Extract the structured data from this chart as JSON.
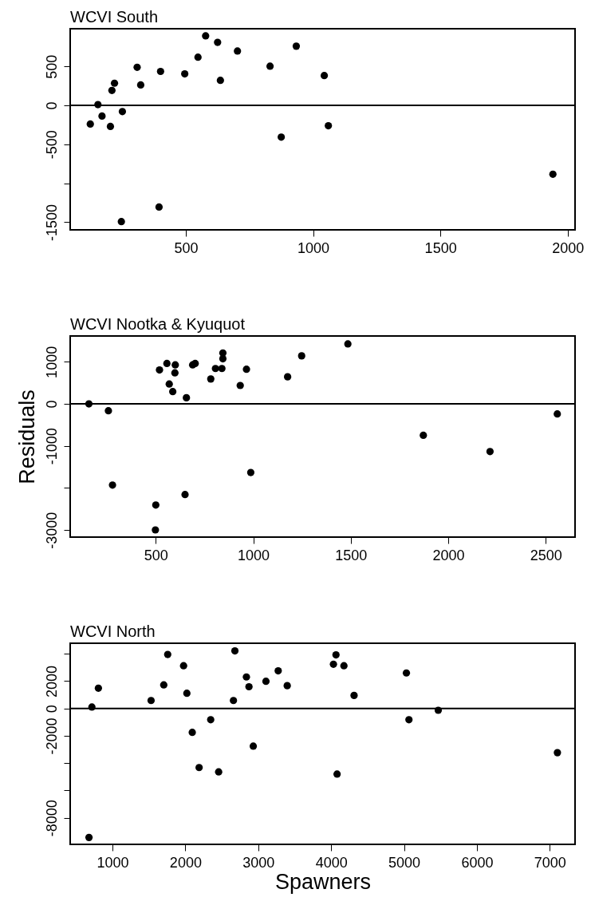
{
  "chart_data": [
    {
      "type": "scatter",
      "title": "WCVI South",
      "marker": "circle",
      "grid": false,
      "xlim": [
        46,
        2029
      ],
      "ylim": [
        -1598,
        983
      ],
      "xticks": [
        500,
        1000,
        1500,
        2000
      ],
      "yticks": [
        -1500,
        {
          "value": -1000,
          "label": null
        },
        -500,
        0,
        500
      ],
      "ref_lines": [
        {
          "axis": "y",
          "value": 0
        }
      ],
      "series": [
        {
          "color": "#000000",
          "x": [
            125,
            155,
            171,
            204,
            210,
            220,
            251,
            247,
            309,
            323,
            401,
            395,
            496,
            548,
            578,
            625,
            636,
            703,
            831,
            875,
            934,
            1044,
            1060,
            1942
          ],
          "values": [
            -240,
            9,
            -138,
            -271,
            191,
            284,
            -80,
            -1492,
            488,
            262,
            435,
            -1305,
            404,
            617,
            892,
            808,
            320,
            697,
            502,
            -408,
            759,
            382,
            -262,
            -884
          ]
        }
      ]
    },
    {
      "type": "scatter",
      "title": "WCVI Nootka & Kyuquot",
      "ylabel": "Residuals",
      "marker": "circle",
      "grid": false,
      "xlim": [
        61,
        2650
      ],
      "ylim": [
        -3167,
        1614
      ],
      "xticks": [
        500,
        1000,
        1500,
        2000,
        2500
      ],
      "yticks": [
        -3000,
        {
          "value": -2000,
          "label": null
        },
        -1000,
        0,
        1000
      ],
      "ref_lines": [
        {
          "axis": "y",
          "value": 0
        }
      ],
      "series": [
        {
          "color": "#000000",
          "x": [
            157,
            257,
            278,
            500,
            498,
            519,
            557,
            569,
            587,
            600,
            598,
            657,
            650,
            689,
            702,
            782,
            806,
            839,
            844,
            844,
            933,
            965,
            987,
            1176,
            1248,
            1485,
            1872,
            2214,
            2559
          ],
          "values": [
            0,
            -163,
            -1931,
            -2404,
            -2996,
            807,
            961,
            472,
            292,
            927,
            738,
            146,
            -2155,
            927,
            961,
            592,
            841,
            841,
            1073,
            1210,
            438,
            824,
            -1631,
            644,
            1142,
            1425,
            -747,
            -1133,
            -240
          ]
        }
      ]
    },
    {
      "type": "scatter",
      "title": "WCVI North",
      "xlabel": "Spawners",
      "marker": "circle",
      "grid": false,
      "xlim": [
        420,
        7347
      ],
      "ylim": [
        -9945,
        4774
      ],
      "xticks": [
        1000,
        2000,
        3000,
        4000,
        5000,
        6000,
        7000
      ],
      "yticks": [
        {
          "value": -8000,
          "label": "-8000"
        },
        {
          "value": -6000,
          "label": null
        },
        {
          "value": -4000,
          "label": null
        },
        -2000,
        0,
        2000,
        {
          "value": 4000,
          "label": null
        }
      ],
      "ref_lines": [
        {
          "axis": "y",
          "value": 0
        }
      ],
      "series": [
        {
          "color": "#000000",
          "x": [
            678,
            718,
            807,
            1530,
            1704,
            1758,
            1976,
            2021,
            2095,
            2189,
            2348,
            2457,
            2660,
            2680,
            2838,
            2873,
            2932,
            3106,
            3274,
            3398,
            4032,
            4067,
            4082,
            4176,
            4315,
            5033,
            5068,
            5470,
            7105
          ],
          "values": [
            -9441,
            106,
            1485,
            583,
            1724,
            3951,
            3129,
            1114,
            -1750,
            -4323,
            -822,
            -4641,
            583,
            4217,
            2307,
            1591,
            -2758,
            1989,
            2758,
            1671,
            3235,
            3925,
            -4800,
            3129,
            955,
            2599,
            -822,
            -133,
            -3235
          ]
        }
      ]
    }
  ]
}
